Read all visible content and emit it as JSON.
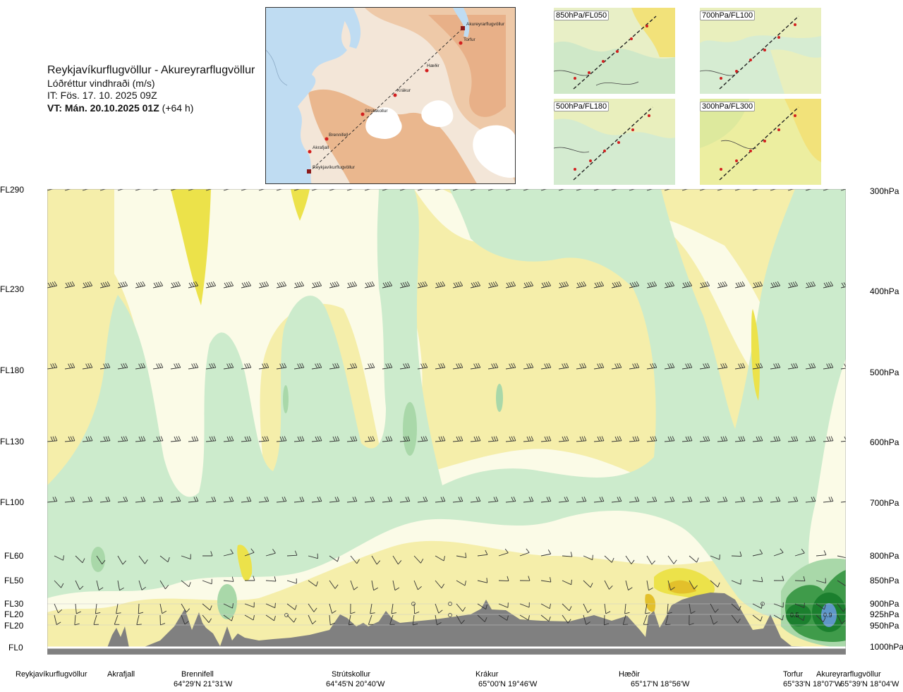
{
  "header": {
    "route_title": "Reykjavíkurflugvöllur - Akureyrarflugvöllur",
    "parameter": "Lóðréttur vindhraði (m/s)",
    "issue_time": "IT: Fös. 17. 10. 2025 09Z",
    "valid_time_bold": "VT: Mán. 20.10.2025 01Z",
    "valid_time_lead": "(+64 h)"
  },
  "overview_map": {
    "waypoints": [
      "Akureyrarflugvöllur",
      "Torfur",
      "Hæðir",
      "Krákur",
      "Strútskollur",
      "Brennifell",
      "Akrafjall",
      "Reykjavíkurflugvöllur"
    ]
  },
  "insets": [
    {
      "label": "850hPa/FL050"
    },
    {
      "label": "700hPa/FL100"
    },
    {
      "label": "500hPa/FL180"
    },
    {
      "label": "300hPa/FL300"
    }
  ],
  "cross_section": {
    "flight_levels": [
      "FL290",
      "FL230",
      "FL180",
      "FL130",
      "FL100",
      "FL60",
      "FL50",
      "FL30",
      "FL20",
      "FL20",
      "FL0"
    ],
    "pressure_levels": [
      "300hPa",
      "400hPa",
      "500hPa",
      "600hPa",
      "700hPa",
      "800hPa",
      "850hPa",
      "900hPa",
      "925hPa",
      "950hPa",
      "1000hPa"
    ],
    "contour_labels": [
      "0.5",
      "0.9"
    ],
    "colors": {
      "weak_down": "#f5eeaa",
      "mod_down": "#ece24a",
      "strong_down": "#e3c02b",
      "neutral": "#fbfbe7",
      "weak_up": "#ccebcc",
      "mod_up": "#a9d8a9",
      "strong_up": "#3f9b4a",
      "very_strong_up": "#1b7f2e",
      "max_up": "#5f97c8",
      "terrain": "#808080"
    }
  },
  "route_points": [
    {
      "name": "Reykjavíkurflugvöllur",
      "coord": ""
    },
    {
      "name": "Akrafjall",
      "coord": ""
    },
    {
      "name": "Brennifell",
      "coord": "64°29'N 21°31'W"
    },
    {
      "name": "Strútskollur",
      "coord": "64°45'N 20°40'W"
    },
    {
      "name": "Krákur",
      "coord": "65°00'N 19°46'W"
    },
    {
      "name": "Hæðir",
      "coord": "65°17'N 18°56'W"
    },
    {
      "name": "Torfur",
      "coord": "65°33'N 18°07'W"
    },
    {
      "name": "Akureyrarflugvöllur",
      "coord": "65°39'N 18°04'W"
    }
  ]
}
